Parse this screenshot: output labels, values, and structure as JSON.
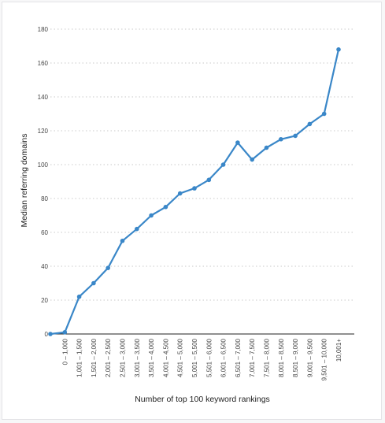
{
  "chart_data": {
    "type": "line",
    "xlabel": "Number of top 100 keyword rankings",
    "ylabel": "Median referring domains",
    "ylim": [
      0,
      180
    ],
    "yticks": [
      0,
      20,
      40,
      60,
      80,
      100,
      120,
      140,
      160,
      180
    ],
    "grid": "horizontal dotted",
    "line_color": "#3a87c8",
    "categories": [
      "0",
      "0 – 1,000",
      "1,001 – 1,500",
      "1,501 – 2,000",
      "2,001 – 2,500",
      "2,501 – 3,000",
      "3,001 – 3,500",
      "3,501 – 4,000",
      "4,001 – 4,500",
      "4,501 – 5,000",
      "5,001 – 5,500",
      "5,501 – 6,000",
      "6,001 – 6,500",
      "6,501 – 7,000",
      "7,001 – 7,500",
      "7,501 – 8,000",
      "8,001 – 8,500",
      "8,501 – 9,000",
      "9,001 – 9,500",
      "9,501 – 10,000",
      "10,001+"
    ],
    "category_labels_shown": [
      false,
      true,
      true,
      true,
      true,
      true,
      true,
      true,
      true,
      true,
      true,
      true,
      true,
      true,
      true,
      true,
      true,
      true,
      true,
      true,
      true
    ],
    "values": [
      0,
      1,
      22,
      30,
      39,
      55,
      62,
      70,
      75,
      83,
      86,
      91,
      100,
      113,
      103,
      110,
      115,
      117,
      124,
      130,
      168
    ]
  }
}
